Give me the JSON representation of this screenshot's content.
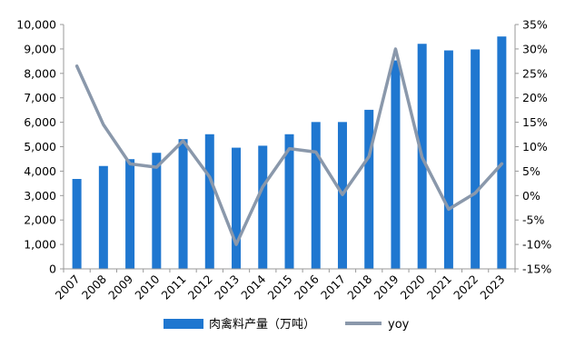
{
  "chart_data": {
    "type": "bar",
    "categories": [
      "2007",
      "2008",
      "2009",
      "2010",
      "2011",
      "2012",
      "2013",
      "2014",
      "2015",
      "2016",
      "2017",
      "2018",
      "2019",
      "2020",
      "2021",
      "2022",
      "2023"
    ],
    "series": [
      {
        "name": "肉禽料产量（万吨）",
        "type": "bar",
        "axis": "left",
        "color": "#1f77d0",
        "values": [
          3680,
          4210,
          4490,
          4750,
          5310,
          5510,
          4960,
          5040,
          5510,
          6010,
          6010,
          6510,
          8530,
          9210,
          8940,
          8980,
          9510
        ]
      },
      {
        "name": "yoy",
        "type": "line",
        "axis": "right",
        "color": "#8a98ab",
        "values": [
          26.5,
          14.5,
          6.5,
          5.8,
          11.2,
          3.8,
          -10.0,
          1.8,
          9.6,
          8.9,
          0.2,
          8.0,
          30.0,
          7.8,
          -2.8,
          0.5,
          6.5
        ]
      }
    ],
    "left_axis": {
      "ylim": [
        0,
        10000
      ],
      "ticks": [
        0,
        1000,
        2000,
        3000,
        4000,
        5000,
        6000,
        7000,
        8000,
        9000,
        10000
      ],
      "tick_labels": [
        "0",
        "1,000",
        "2,000",
        "3,000",
        "4,000",
        "5,000",
        "6,000",
        "7,000",
        "8,000",
        "9,000",
        "10,000"
      ]
    },
    "right_axis": {
      "ylim": [
        -15,
        35
      ],
      "ticks": [
        -15,
        -10,
        -5,
        0,
        5,
        10,
        15,
        20,
        25,
        30,
        35
      ],
      "tick_labels": [
        "-15%",
        "-10%",
        "-5%",
        "0%",
        "5%",
        "10%",
        "15%",
        "20%",
        "25%",
        "30%",
        "35%"
      ]
    },
    "title": "",
    "xlabel": "",
    "ylabel": "",
    "grid": false,
    "legend_position": "bottom"
  }
}
